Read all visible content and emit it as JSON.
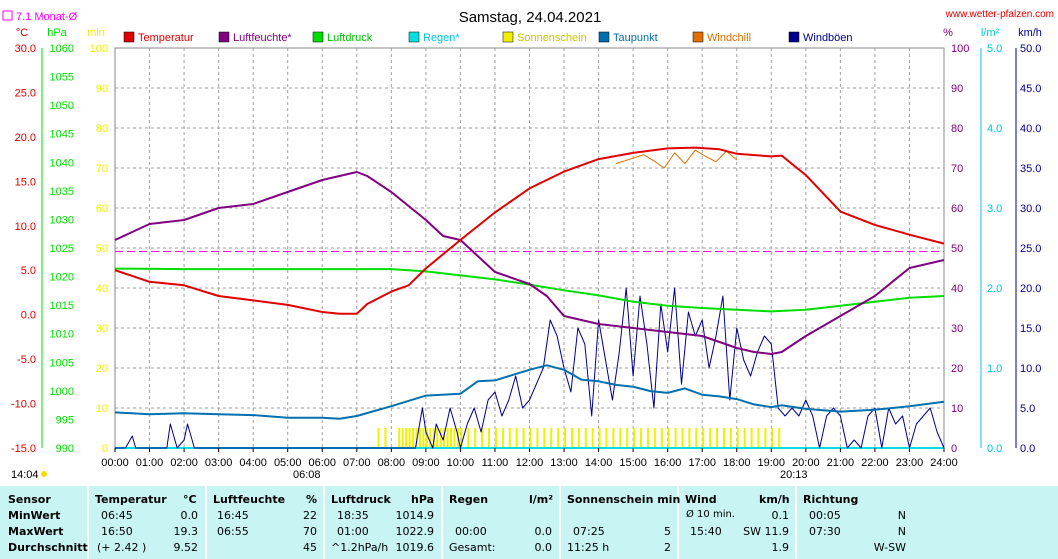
{
  "header": {
    "title": "Samstag, 24.04.2021",
    "site": "www.wetter-pfalzen.com",
    "monthly_avg_label": "7.1 Monat-Ø",
    "time_left": "14:04",
    "sunrise": "06:08",
    "sunset": "20:13"
  },
  "colors": {
    "temperature": "#e00000",
    "humidity": "#800080",
    "pressure": "#00dd00",
    "rain": "#00e0e0",
    "sunshine": "#f0f000",
    "dewpoint": "#0070b0",
    "windchill": "#e07000",
    "gusts": "#00008b",
    "monthly_avg": "#ff00ff"
  },
  "chart_data": {
    "type": "line",
    "legend": [
      "Temperatur",
      "Luftfeuchte*",
      "Luftdruck",
      "Regen*",
      "Sonnenschein",
      "Taupunkt",
      "Windchill",
      "Windböen"
    ],
    "x_ticks": [
      "00:00",
      "01:00",
      "02:00",
      "03:00",
      "04:00",
      "05:00",
      "06:00",
      "07:00",
      "08:00",
      "09:00",
      "10:00",
      "11:00",
      "12:00",
      "13:00",
      "14:00",
      "15:00",
      "16:00",
      "17:00",
      "18:00",
      "19:00",
      "20:00",
      "21:00",
      "22:00",
      "23:00",
      "24:00"
    ],
    "axes": {
      "temp": {
        "unit": "°C",
        "min": -15,
        "max": 30,
        "ticks": [
          "30.0",
          "25.0",
          "20.0",
          "15.0",
          "10.0",
          "5.0",
          "0.0",
          "-5.0",
          "-10.0",
          "-15.0"
        ]
      },
      "pressure": {
        "unit": "hPa",
        "min": 990,
        "max": 1060,
        "ticks": [
          "1060",
          "1055",
          "1050",
          "1045",
          "1040",
          "1035",
          "1030",
          "1025",
          "1020",
          "1015",
          "1010",
          "1005",
          "1000",
          "995",
          "990"
        ]
      },
      "sun": {
        "unit": "min",
        "min": 0,
        "max": 100,
        "ticks": [
          "100",
          "90",
          "80",
          "70",
          "60",
          "50",
          "40",
          "30",
          "20",
          "10",
          "0"
        ]
      },
      "humidity": {
        "unit": "%",
        "min": 0,
        "max": 100,
        "ticks": [
          "100",
          "90",
          "80",
          "70",
          "60",
          "50",
          "40",
          "30",
          "20",
          "10",
          "0"
        ]
      },
      "rain": {
        "unit": "l/m²",
        "min": 0,
        "max": 5,
        "ticks": [
          "5.0",
          "4.0",
          "3.0",
          "2.0",
          "1.0",
          "0.0"
        ]
      },
      "wind": {
        "unit": "km/h",
        "min": 0,
        "max": 50,
        "ticks": [
          "50.0",
          "45.0",
          "40.0",
          "35.0",
          "30.0",
          "25.0",
          "20.0",
          "15.0",
          "10.0",
          "5.0",
          "0.0"
        ]
      }
    },
    "monthly_avg_temp": 7.1,
    "series": [
      {
        "name": "Temperatur",
        "x": [
          0,
          1,
          2,
          3,
          4,
          5,
          6,
          6.5,
          7,
          7.3,
          8,
          8.5,
          9,
          10,
          11,
          12,
          13,
          14,
          15,
          16,
          16.8,
          17.5,
          18,
          19,
          19.3,
          20,
          21,
          22,
          23,
          24
        ],
        "values": [
          5.0,
          3.7,
          3.3,
          2.1,
          1.6,
          1.1,
          0.3,
          0.1,
          0.1,
          1.2,
          2.6,
          3.3,
          5.2,
          8.4,
          11.5,
          14.2,
          16.1,
          17.5,
          18.2,
          18.7,
          18.8,
          18.6,
          18.1,
          17.8,
          17.9,
          15.7,
          11.6,
          10.1,
          9.0,
          8.0
        ]
      },
      {
        "name": "Luftfeuchte*",
        "x": [
          0,
          1,
          2,
          3,
          4,
          5,
          6,
          6.5,
          7,
          7.3,
          8,
          9,
          9.5,
          10,
          11,
          12,
          12.5,
          13,
          14,
          15,
          16,
          17,
          18,
          18.5,
          19,
          19.3,
          20,
          21,
          22,
          23,
          24
        ],
        "values": [
          52,
          56,
          57,
          60,
          61,
          64,
          67,
          68,
          69,
          68,
          64,
          57,
          53,
          52,
          44,
          41,
          38,
          33,
          31,
          30,
          29,
          28,
          25,
          24,
          23.5,
          24,
          28,
          33,
          38,
          45,
          47
        ]
      },
      {
        "name": "Luftdruck",
        "x": [
          0,
          2,
          4,
          6,
          8,
          9,
          10,
          11,
          12,
          13,
          14,
          15,
          16,
          17,
          18,
          19,
          20,
          21,
          22,
          23,
          24
        ],
        "values": [
          1021.4,
          1021.3,
          1021.3,
          1021.3,
          1021.3,
          1020.9,
          1020.2,
          1019.5,
          1018.6,
          1017.6,
          1016.7,
          1015.6,
          1014.9,
          1014.5,
          1014.2,
          1013.9,
          1014.2,
          1014.9,
          1015.6,
          1016.3,
          1016.6
        ]
      },
      {
        "name": "Regen*",
        "x": [
          0,
          24
        ],
        "values": [
          0.0,
          0.0
        ]
      },
      {
        "name": "Sonnenschein",
        "x": [
          7.6,
          7.7,
          7.8,
          7.9,
          8.0,
          8.1,
          8.2,
          8.3,
          8.4,
          8.5,
          8.6,
          8.7,
          8.8,
          8.9,
          9.0,
          9.1,
          9.2,
          9.3,
          9.4,
          9.5,
          9.6,
          9.7,
          9.8,
          9.9,
          10.0,
          10.2,
          10.4,
          10.6,
          10.8,
          11.0,
          11.2,
          11.4,
          11.6,
          11.8,
          12.0,
          12.2,
          12.4,
          12.6,
          12.8,
          13.0,
          13.2,
          13.4,
          13.6,
          13.8,
          14.0,
          14.2,
          14.4,
          14.6,
          14.8,
          15.0,
          15.2,
          15.4,
          15.6,
          15.8,
          16.0,
          16.2,
          16.4,
          16.6,
          16.8,
          17.0,
          17.2,
          17.4,
          17.6,
          17.8,
          18.0,
          18.2,
          18.4,
          18.6,
          18.8,
          19.0,
          19.2
        ],
        "values": [
          5,
          0,
          5,
          0,
          0,
          0,
          5,
          5,
          5,
          5,
          5,
          5,
          5,
          5,
          5,
          5,
          5,
          5,
          5,
          5,
          5,
          5,
          5,
          5,
          5,
          5,
          5,
          5,
          5,
          5,
          5,
          5,
          5,
          5,
          5,
          5,
          5,
          5,
          5,
          5,
          5,
          5,
          5,
          5,
          5,
          5,
          5,
          5,
          5,
          5,
          5,
          5,
          5,
          5,
          5,
          5,
          5,
          5,
          5,
          5,
          5,
          5,
          5,
          5,
          5,
          5,
          5,
          5,
          5,
          5,
          5
        ]
      },
      {
        "name": "Taupunkt",
        "x": [
          0,
          1,
          2,
          3,
          4,
          5,
          6,
          6.5,
          7,
          8,
          9,
          10,
          10.5,
          11,
          11.5,
          12,
          12.5,
          13,
          13.5,
          14,
          14.5,
          15,
          15.5,
          16,
          16.5,
          17,
          17.5,
          18,
          18.5,
          19,
          19.3,
          20,
          21,
          22,
          23,
          24
        ],
        "values": [
          -11.0,
          -11.2,
          -11.1,
          -11.2,
          -11.3,
          -11.6,
          -11.6,
          -11.7,
          -11.4,
          -10.3,
          -9.1,
          -8.9,
          -7.5,
          -7.4,
          -6.8,
          -6.2,
          -5.7,
          -6.2,
          -7.3,
          -7.5,
          -7.9,
          -8.1,
          -8.6,
          -8.8,
          -8.3,
          -9.0,
          -9.2,
          -9.5,
          -10.1,
          -10.4,
          -10.2,
          -10.6,
          -10.9,
          -10.7,
          -10.3,
          -9.8
        ]
      },
      {
        "name": "Windchill",
        "x": [
          14.5,
          15.0,
          15.3,
          15.6,
          15.9,
          16.2,
          16.5,
          16.8,
          17.1,
          17.4,
          17.7,
          18.0
        ],
        "values": [
          17.0,
          17.6,
          18.0,
          17.3,
          16.5,
          18.2,
          17.0,
          18.5,
          17.8,
          17.2,
          18.4,
          17.4
        ]
      },
      {
        "name": "Windböen",
        "x": [
          0,
          0.3,
          0.5,
          0.6,
          0.8,
          1.2,
          1.5,
          1.6,
          1.8,
          2.0,
          2.1,
          2.3,
          2.6,
          3,
          4,
          5,
          6,
          7,
          7.3,
          8,
          8.3,
          8.5,
          8.7,
          8.9,
          9.0,
          9.2,
          9.3,
          9.5,
          9.7,
          9.9,
          10.0,
          10.2,
          10.4,
          10.6,
          10.8,
          11.0,
          11.2,
          11.4,
          11.6,
          11.8,
          12.0,
          12.2,
          12.4,
          12.6,
          12.8,
          13.0,
          13.2,
          13.4,
          13.6,
          13.8,
          14.0,
          14.2,
          14.4,
          14.6,
          14.8,
          15.0,
          15.2,
          15.4,
          15.6,
          15.8,
          16.0,
          16.2,
          16.4,
          16.6,
          16.8,
          17.0,
          17.2,
          17.4,
          17.6,
          17.8,
          18.0,
          18.2,
          18.4,
          18.6,
          18.8,
          19.0,
          19.2,
          19.4,
          19.6,
          19.8,
          20.0,
          20.2,
          20.4,
          20.6,
          20.8,
          21.0,
          21.2,
          21.4,
          21.6,
          21.8,
          22.0,
          22.2,
          22.4,
          22.6,
          22.8,
          23.0,
          23.2,
          23.4,
          23.6,
          23.8,
          24
        ],
        "values": [
          0,
          0,
          1.5,
          0,
          0,
          0,
          0,
          3,
          0,
          1,
          3,
          0,
          0,
          0,
          0,
          0,
          0,
          0,
          0,
          0,
          0,
          0,
          0,
          5,
          2,
          0,
          3,
          1,
          5,
          2,
          0,
          3,
          5,
          2,
          6,
          7,
          4,
          6,
          9,
          5,
          6,
          8,
          10,
          16,
          14,
          10,
          7,
          15,
          13,
          4,
          16,
          11,
          6,
          12,
          20,
          9,
          19,
          13,
          5,
          18,
          12,
          20,
          8,
          17,
          14,
          16,
          10,
          14,
          19,
          6,
          15,
          11,
          9,
          12,
          14,
          13,
          5,
          4,
          5,
          4,
          6,
          4,
          0,
          4,
          5,
          4,
          0,
          1,
          0,
          4,
          5,
          0,
          5,
          3,
          4,
          0,
          3,
          4,
          5,
          2,
          0
        ]
      }
    ]
  },
  "stats": {
    "headers": {
      "sensor": "Sensor",
      "temp": "Temperatur",
      "temp_unit": "°C",
      "hum": "Luftfeuchte",
      "hum_unit": "%",
      "press": "Luftdruck",
      "press_unit": "hPa",
      "rain": "Regen",
      "rain_unit": "l/m²",
      "sun": "Sonnenschein min",
      "wind": "Wind",
      "wind_unit": "km/h",
      "dir": "Richtung"
    },
    "rows": [
      {
        "label": "MinWert",
        "temp_time": "06:45",
        "temp_val": "0.0",
        "hum_time": "16:45",
        "hum_val": "22",
        "press_time": "18:35",
        "press_val": "1014.9",
        "rain_time": "",
        "rain_val": "",
        "sun_time": "",
        "sun_val": "",
        "wind_time": "Ø 10 min.",
        "wind_val": "0.1",
        "dir_time": "00:05",
        "dir_val": "N"
      },
      {
        "label": "MaxWert",
        "temp_time": "16:50",
        "temp_val": "19.3",
        "hum_time": "06:55",
        "hum_val": "70",
        "press_time": "01:00",
        "press_val": "1022.9",
        "rain_time": "00:00",
        "rain_val": "0.0",
        "sun_time": "07:25",
        "sun_val": "5",
        "wind_time": "15:40",
        "wind_val": "SW 11.9",
        "dir_time": "07:30",
        "dir_val": "N"
      },
      {
        "label": "Durchschnitt",
        "temp_time": "(+ 2.42 )",
        "temp_val": "9.52",
        "hum_time": "",
        "hum_val": "45",
        "press_time": "^1.2hPa/h",
        "press_val": "1019.6",
        "rain_time": "Gesamt:",
        "rain_val": "0.0",
        "sun_time": "11:25 h",
        "sun_val": "2",
        "wind_time": "",
        "wind_val": "1.9",
        "dir_time": "",
        "dir_val": "W-SW"
      }
    ]
  }
}
